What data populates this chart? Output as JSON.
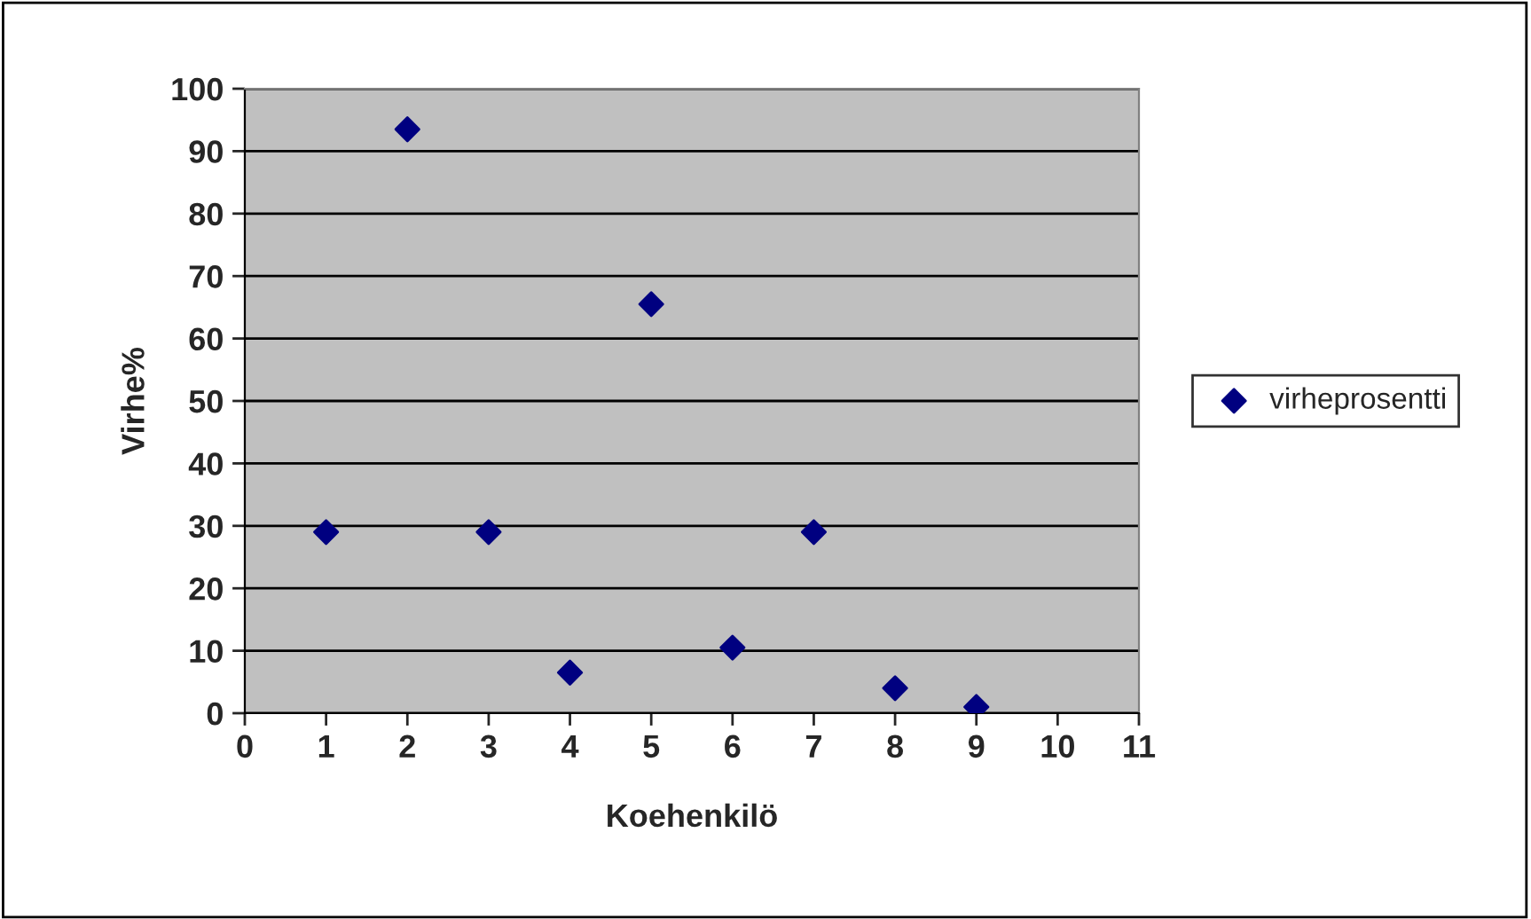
{
  "chart_data": {
    "type": "scatter",
    "xlabel": "Koehenkilö",
    "ylabel": "Virhe%",
    "x": [
      1,
      2,
      3,
      4,
      5,
      6,
      7,
      8,
      9
    ],
    "series": [
      {
        "name": "virheprosentti",
        "color": "#000080",
        "values": [
          29,
          93.5,
          29,
          6.5,
          65.5,
          10.5,
          29,
          4,
          1
        ]
      }
    ],
    "xlim": [
      0,
      11
    ],
    "xticks": [
      0,
      1,
      2,
      3,
      4,
      5,
      6,
      7,
      8,
      9,
      10,
      11
    ],
    "ylim": [
      0,
      100
    ],
    "yticks": [
      0,
      10,
      20,
      30,
      40,
      50,
      60,
      70,
      80,
      90,
      100
    ],
    "grid": "y",
    "legend": "right",
    "marker": "diamond"
  }
}
